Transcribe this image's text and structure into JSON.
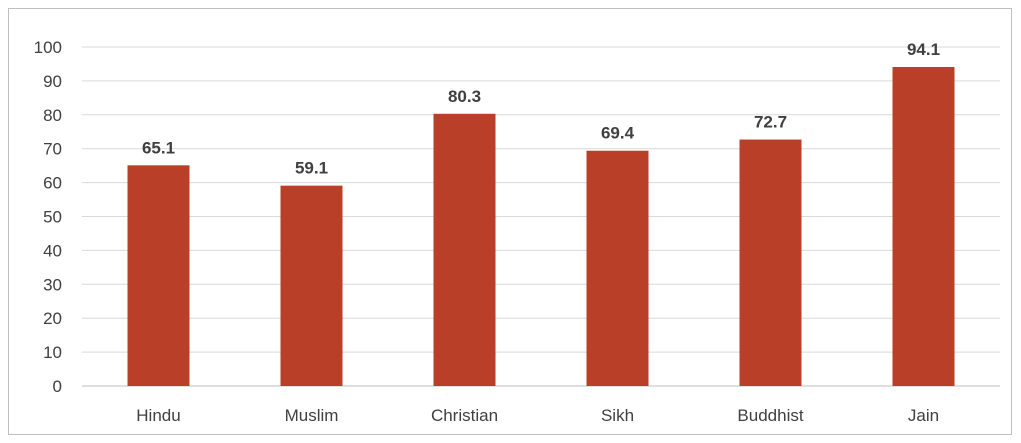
{
  "chart_data": {
    "type": "bar",
    "title": "",
    "xlabel": "",
    "ylabel": "",
    "categories": [
      "Hindu",
      "Muslim",
      "Christian",
      "Sikh",
      "Buddhist",
      "Jain"
    ],
    "values": [
      65.1,
      59.1,
      80.3,
      69.4,
      72.7,
      94.1
    ],
    "value_labels": [
      "65.1",
      "59.1",
      "80.3",
      "69.4",
      "72.7",
      "94.1"
    ],
    "ylim": [
      0,
      100
    ],
    "yticks": [
      0,
      10,
      20,
      30,
      40,
      50,
      60,
      70,
      80,
      90,
      100
    ],
    "ytick_labels": [
      "0",
      "10",
      "20",
      "30",
      "40",
      "50",
      "60",
      "70",
      "80",
      "90",
      "100"
    ],
    "grid": true,
    "legend": "none",
    "colors": {
      "bar": "#BA3F28",
      "grid": "#D9D9D9",
      "axis": "#BFBFBF",
      "text": "#404040"
    }
  }
}
